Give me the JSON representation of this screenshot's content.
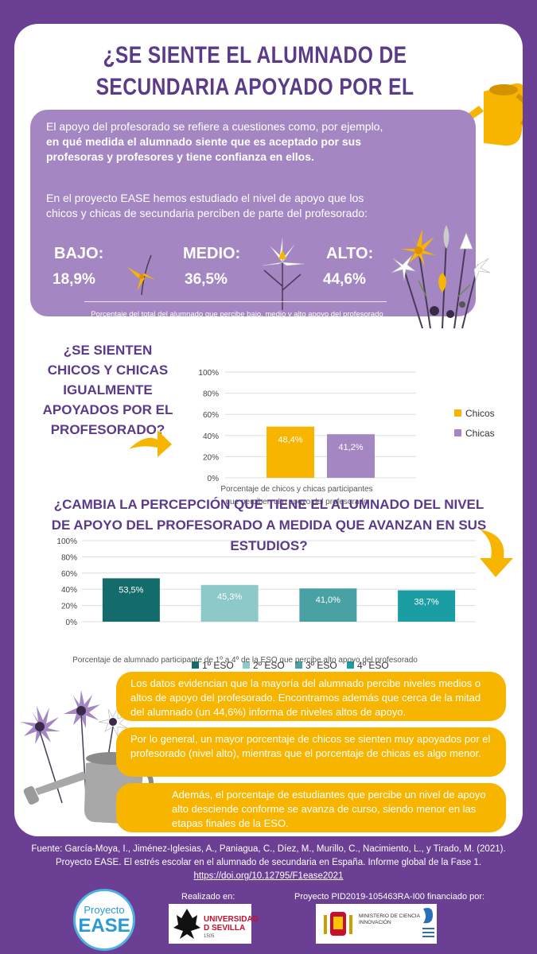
{
  "title": "¿SE SIENTE EL ALUMNADO DE SECUNDARIA APOYADO POR EL PROFESORADO?",
  "intro": {
    "p1_a": "El apoyo del profesorado se refiere a cuestiones como, por ejemplo, ",
    "p1_b": "en qué medida el alumnado siente que es aceptado por sus profesoras y profesores y tiene confianza en ellos.",
    "p2": "En el proyecto EASE hemos estudiado el nivel de apoyo que los chicos y chicas de secundaria perciben de parte del profesorado:",
    "levels": [
      {
        "label": "BAJO:",
        "value": "18,9%"
      },
      {
        "label": "MEDIO:",
        "value": "36,5%"
      },
      {
        "label": "ALTO:",
        "value": "44,6%"
      }
    ],
    "caption": "Porcentaje del total del alumnado que percibe bajo, medio y alto apoyo del profesorado"
  },
  "question2": "¿SE SIENTEN CHICOS Y CHICAS IGUALMENTE APOYADOS POR EL PROFESORADO?",
  "question3": "¿CAMBIA LA PERCEPCIÓN QUE TIENE EL ALUMNADO DEL NIVEL DE APOYO DEL PROFESORADO A MEDIDA QUE AVANZAN EN SUS ESTUDIOS?",
  "chart_data": [
    {
      "type": "bar",
      "categories": [
        "Chicos",
        "Chicas"
      ],
      "values": [
        48.4,
        41.2
      ],
      "value_labels": [
        "48,4%",
        "41,2%"
      ],
      "colors": [
        "#f7b500",
        "#a487c2"
      ],
      "yticks": [
        "0%",
        "20%",
        "40%",
        "60%",
        "80%",
        "100%"
      ],
      "ylim": [
        0,
        100
      ],
      "legend": [
        "Chicos",
        "Chicas"
      ],
      "legend_position": "right",
      "xlabel": "Porcentaje de chicos y chicas participantes que perciben alto apoyo del profesorado"
    },
    {
      "type": "bar",
      "categories": [
        "1º ESO",
        "2º ESO",
        "3º ESO",
        "4º ESO"
      ],
      "values": [
        53.5,
        45.3,
        41.0,
        38.7
      ],
      "value_labels": [
        "53,5%",
        "45,3%",
        "41,0%",
        "38,7%"
      ],
      "colors": [
        "#136b6b",
        "#8ec9c9",
        "#4aa1a3",
        "#1b9ea3"
      ],
      "yticks": [
        "0%",
        "20%",
        "40%",
        "60%",
        "80%",
        "100%"
      ],
      "ylim": [
        0,
        100
      ],
      "legend": [
        "1º ESO",
        "2º ESO",
        "3º ESO",
        "4º ESO"
      ],
      "legend_position": "bottom",
      "xlabel": "Porcentaje de alumnado participante de 1º a 4º de la ESO que percibe alto apoyo del profesorado"
    }
  ],
  "conclusions": [
    "Los datos evidencian que la mayoría del alumnado percibe niveles medios o altos de apoyo del profesorado. Encontramos además que cerca de la mitad del alumnado (un 44,6%) informa de niveles altos de apoyo.",
    "Por lo general, un mayor porcentaje de chicos se sienten muy apoyados por el profesorado (nivel alto), mientras que el porcentaje de chicas es algo menor.",
    "Además, el porcentaje de estudiantes que percibe un nivel de apoyo alto desciende conforme se avanza de curso, siendo menor en las etapas finales de la ESO."
  ],
  "footer": {
    "source_1": "Fuente: García-Moya, I., Jiménez-Iglesias, A., Paniagua, C., Díez, M., Murillo, C., Nacimiento, L., y Tirado, M. (2021).",
    "source_2": "Proyecto EASE. El estrés escolar en el alumnado de secundaria en España. Informe global de la Fase 1.",
    "link": "https://doi.org/10.12795/F1ease2021",
    "made_by": "Realizado en:",
    "project": "Proyecto PID2019-105463RA-I00 financiado por:",
    "ease_logo_1": "Proyecto",
    "ease_logo_2": "EASE",
    "us_logo_text": "UNIVERSIDAD D SEVILLA",
    "us_logo_year": "1505",
    "ministry_text": "MINISTERIO DE CIENCIA E INNOVACIÓN"
  }
}
